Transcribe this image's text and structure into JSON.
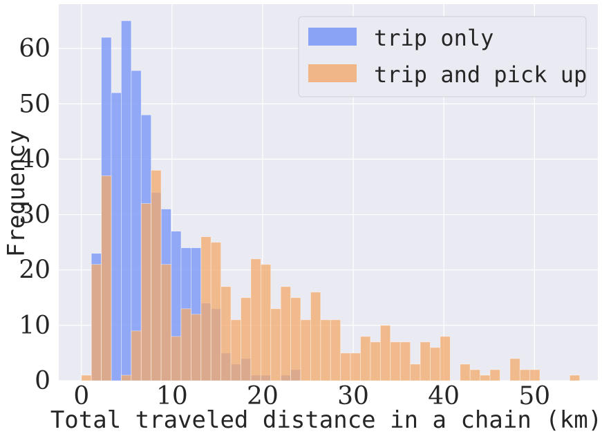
{
  "chart_data": {
    "type": "bar",
    "xlabel": "Total traveled distance in a chain (km)",
    "ylabel": "Frequency",
    "xlim": [
      -2.5,
      57
    ],
    "ylim": [
      0,
      68
    ],
    "xticks": [
      0,
      10,
      20,
      30,
      40,
      50
    ],
    "yticks": [
      0,
      10,
      20,
      30,
      40,
      50,
      60
    ],
    "grid": true,
    "legend_position": "top-right",
    "bin_width": 1.1,
    "bin_start": 0,
    "series": [
      {
        "name": "trip only",
        "color": "#7291f5",
        "values": [
          0,
          23,
          62,
          52,
          65,
          56,
          48,
          34,
          31,
          27,
          24,
          24,
          14,
          13,
          5,
          3,
          4,
          1,
          1,
          0,
          1,
          2,
          0,
          0,
          0,
          0,
          0,
          0,
          0,
          0,
          0,
          0,
          0,
          0,
          0,
          0,
          0,
          0,
          0,
          0,
          0,
          0,
          0,
          0,
          0,
          0,
          0,
          0,
          0,
          0
        ]
      },
      {
        "name": "trip and pick up",
        "color": "#f3a96b",
        "values": [
          1,
          21,
          37,
          0,
          1,
          9,
          32,
          38,
          21,
          8,
          13,
          12,
          26,
          25,
          17,
          11,
          15,
          22,
          21,
          13,
          17,
          15,
          11,
          16,
          11,
          11,
          5,
          5,
          8,
          7,
          10,
          7,
          7,
          3,
          7,
          6,
          8,
          0,
          3,
          2,
          1,
          2,
          0,
          4,
          2,
          2,
          0,
          0,
          0,
          1
        ]
      }
    ]
  }
}
